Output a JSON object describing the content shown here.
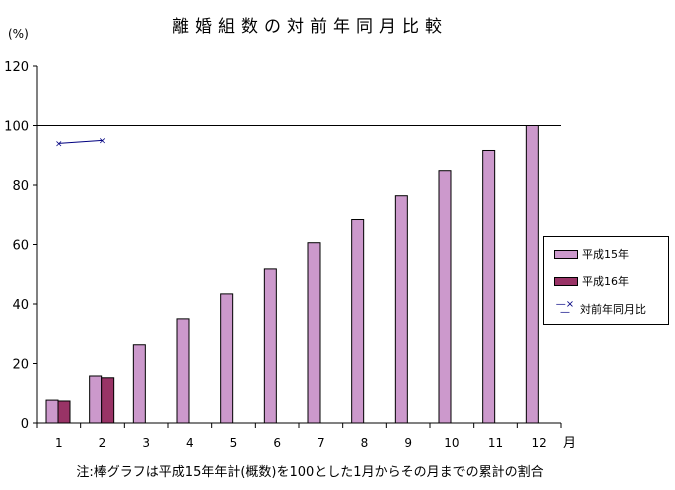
{
  "title": "離婚組数の対前年同月比較",
  "y_unit": "(%)",
  "x_unit": "月",
  "note": "注:棒グラフは平成15年年計(概数)を100とした1月からその月までの累計の割合",
  "legend": {
    "items": [
      {
        "label": "平成15年",
        "color": "#cc99cc",
        "type": "bar"
      },
      {
        "label": "平成16年",
        "color": "#993366",
        "type": "bar"
      },
      {
        "label": "対前年同月比",
        "color": "#000080",
        "type": "line",
        "marker": "×"
      }
    ]
  },
  "chart_data": {
    "type": "bar",
    "title": "離婚組数の対前年同月比較",
    "xlabel": "月",
    "ylabel": "(%)",
    "ylim": [
      0,
      120
    ],
    "yticks": [
      0,
      20,
      40,
      60,
      80,
      100,
      120
    ],
    "categories": [
      "1",
      "2",
      "3",
      "4",
      "5",
      "6",
      "7",
      "8",
      "9",
      "10",
      "11",
      "12"
    ],
    "series": [
      {
        "name": "平成15年",
        "type": "bar",
        "color": "#cc99cc",
        "values": [
          7.7,
          15.8,
          26.3,
          35.0,
          43.4,
          51.8,
          60.6,
          68.4,
          76.4,
          84.8,
          91.6,
          100.0
        ]
      },
      {
        "name": "平成16年",
        "type": "bar",
        "color": "#993366",
        "values": [
          7.4,
          15.2,
          null,
          null,
          null,
          null,
          null,
          null,
          null,
          null,
          null,
          null
        ]
      },
      {
        "name": "対前年同月比",
        "type": "line",
        "color": "#000080",
        "marker": "x",
        "values": [
          94.0,
          95.0,
          null,
          null,
          null,
          null,
          null,
          null,
          null,
          null,
          null,
          null
        ]
      }
    ],
    "reference_line": 100,
    "grid": false,
    "legend_position": "right"
  }
}
